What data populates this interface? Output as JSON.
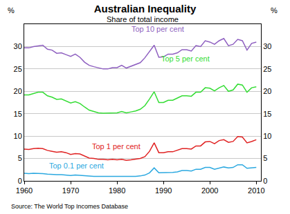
{
  "chart_data": {
    "type": "line",
    "title": "Australian Inequality",
    "subtitle": "Share of total income",
    "ylabel": "%",
    "y2label": "%",
    "source": "Source: The World Top Incomes Database",
    "x": [
      1960,
      1961,
      1962,
      1963,
      1964,
      1965,
      1966,
      1967,
      1968,
      1969,
      1970,
      1971,
      1972,
      1973,
      1974,
      1975,
      1976,
      1977,
      1978,
      1979,
      1980,
      1981,
      1982,
      1983,
      1984,
      1985,
      1986,
      1987,
      1988,
      1989,
      1990,
      1991,
      1992,
      1993,
      1994,
      1995,
      1996,
      1997,
      1998,
      1999,
      2000,
      2001,
      2002,
      2003,
      2004,
      2005,
      2006,
      2007,
      2008,
      2009,
      2010
    ],
    "series": [
      {
        "name": "Top 10 per cent",
        "color": "#8e5fc0",
        "values": [
          29.7,
          29.7,
          30.0,
          30.2,
          30.3,
          29.4,
          29.2,
          28.5,
          28.6,
          28.2,
          27.8,
          28.3,
          27.6,
          26.5,
          25.8,
          25.5,
          25.2,
          25.0,
          25.0,
          25.3,
          25.3,
          25.8,
          25.2,
          25.6,
          25.9,
          26.4,
          27.5,
          29.0,
          30.3,
          27.6,
          27.7,
          28.3,
          28.3,
          28.6,
          29.3,
          29.3,
          29.0,
          30.2,
          30.0,
          31.3,
          31.0,
          30.5,
          31.3,
          31.8,
          30.2,
          30.5,
          31.6,
          31.3,
          29.2,
          30.7,
          31.0
        ]
      },
      {
        "name": "Top 5 per cent",
        "color": "#33dd33",
        "values": [
          19.2,
          19.2,
          19.5,
          19.8,
          19.8,
          19.0,
          18.7,
          18.2,
          18.3,
          17.9,
          17.4,
          17.7,
          17.3,
          16.5,
          15.8,
          15.5,
          15.2,
          15.1,
          15.1,
          15.2,
          15.2,
          15.5,
          15.2,
          15.4,
          15.6,
          16.0,
          16.8,
          18.3,
          19.9,
          17.5,
          17.5,
          18.0,
          18.0,
          18.5,
          19.0,
          19.0,
          18.9,
          19.8,
          19.8,
          20.8,
          20.7,
          20.1,
          20.8,
          21.3,
          20.0,
          20.3,
          21.6,
          21.4,
          19.8,
          20.8,
          21.0
        ]
      },
      {
        "name": "Top 1 per cent",
        "color": "#e02222",
        "values": [
          7.1,
          7.0,
          7.2,
          7.3,
          7.2,
          6.8,
          6.6,
          6.4,
          6.5,
          6.3,
          5.9,
          6.1,
          6.0,
          5.5,
          5.1,
          5.0,
          4.8,
          4.8,
          4.7,
          4.8,
          4.7,
          4.8,
          4.6,
          4.7,
          4.8,
          5.0,
          5.4,
          6.6,
          8.5,
          6.3,
          6.3,
          6.5,
          6.5,
          6.8,
          7.2,
          7.2,
          7.1,
          7.8,
          7.8,
          8.7,
          8.8,
          8.3,
          9.0,
          9.2,
          8.6,
          8.8,
          9.9,
          9.8,
          8.5,
          8.8,
          9.2
        ]
      },
      {
        "name": "Top 0.1 per cent",
        "color": "#2aa8e0",
        "values": [
          1.7,
          1.6,
          1.7,
          1.7,
          1.6,
          1.5,
          1.4,
          1.4,
          1.4,
          1.3,
          1.2,
          1.3,
          1.2,
          1.1,
          1.0,
          1.0,
          1.0,
          1.0,
          0.9,
          1.0,
          1.0,
          1.0,
          0.9,
          1.0,
          1.0,
          1.1,
          1.3,
          1.8,
          2.9,
          1.8,
          1.8,
          1.8,
          1.9,
          2.0,
          2.3,
          2.3,
          2.2,
          2.6,
          2.6,
          3.0,
          3.0,
          2.6,
          2.9,
          3.1,
          2.9,
          3.0,
          3.6,
          3.6,
          2.8,
          2.9,
          3.0
        ]
      }
    ],
    "xlim": [
      1960,
      2011
    ],
    "xticks": [
      1960,
      1970,
      1980,
      1990,
      2000,
      2010
    ],
    "ylim": [
      0,
      35
    ],
    "yticks": [
      0,
      5,
      10,
      15,
      20,
      25,
      30
    ],
    "y2lim": [
      0,
      35
    ],
    "y2ticks": [
      0,
      5,
      10,
      15,
      20,
      25,
      30
    ],
    "grid": true
  }
}
